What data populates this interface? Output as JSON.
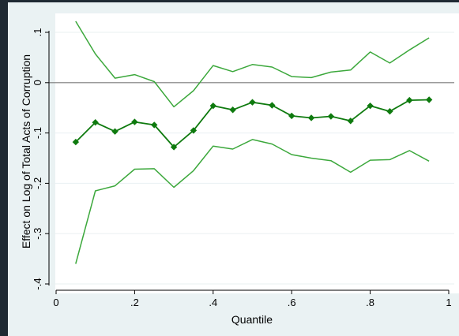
{
  "chart_data": {
    "type": "line",
    "title": "",
    "xlabel": "Quantile",
    "ylabel": "Effect on Log of Total Acts of Corruption",
    "xlim": [
      0,
      1
    ],
    "ylim": [
      -0.4,
      0.1
    ],
    "xticks": [
      {
        "value": 0,
        "label": "0"
      },
      {
        "value": 0.2,
        "label": ".2"
      },
      {
        "value": 0.4,
        "label": ".4"
      },
      {
        "value": 0.6,
        "label": ".6"
      },
      {
        "value": 0.8,
        "label": ".8"
      },
      {
        "value": 1,
        "label": "1"
      }
    ],
    "yticks": [
      {
        "value": -0.4,
        "label": "-.4"
      },
      {
        "value": -0.3,
        "label": "-.3"
      },
      {
        "value": -0.2,
        "label": "-.2"
      },
      {
        "value": -0.1,
        "label": "-.1"
      },
      {
        "value": 0,
        "label": "0"
      },
      {
        "value": 0.1,
        "label": ".1"
      }
    ],
    "grid": true,
    "reference_line": 0,
    "x": [
      0.05,
      0.1,
      0.15,
      0.2,
      0.25,
      0.3,
      0.35,
      0.4,
      0.45,
      0.5,
      0.55,
      0.6,
      0.65,
      0.7,
      0.75,
      0.8,
      0.85,
      0.9,
      0.95
    ],
    "series": [
      {
        "role": "estimate",
        "color": "#0e7a0e",
        "marker": "diamond",
        "values": [
          -0.118,
          -0.079,
          -0.097,
          -0.078,
          -0.084,
          -0.128,
          -0.095,
          -0.046,
          -0.054,
          -0.039,
          -0.045,
          -0.066,
          -0.07,
          -0.067,
          -0.076,
          -0.046,
          -0.057,
          -0.035,
          -0.034
        ]
      },
      {
        "role": "upper-bound",
        "color": "#3ca83c",
        "marker": "none",
        "values": [
          0.122,
          0.057,
          0.009,
          0.016,
          0.002,
          -0.048,
          -0.016,
          0.034,
          0.022,
          0.036,
          0.031,
          0.012,
          0.01,
          0.021,
          0.025,
          0.061,
          0.039,
          0.065,
          0.089
        ]
      },
      {
        "role": "lower-bound",
        "color": "#3ca83c",
        "marker": "none",
        "values": [
          -0.36,
          -0.215,
          -0.205,
          -0.172,
          -0.171,
          -0.208,
          -0.175,
          -0.126,
          -0.132,
          -0.113,
          -0.122,
          -0.143,
          -0.15,
          -0.155,
          -0.178,
          -0.154,
          -0.153,
          -0.135,
          -0.156
        ]
      }
    ]
  }
}
